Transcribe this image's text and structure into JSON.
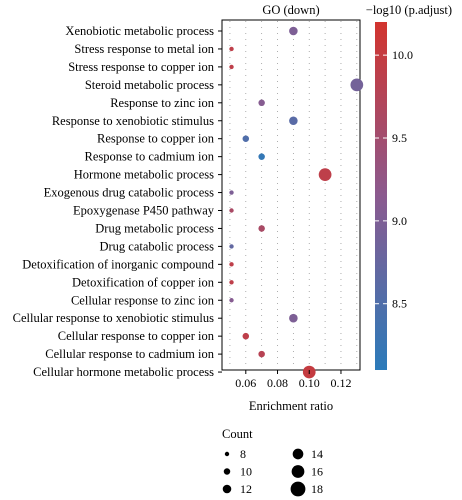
{
  "chart_data": {
    "type": "scatter",
    "title": "GO (down)",
    "xlabel": "Enrichment ratio",
    "xlim": [
      0.045,
      0.132
    ],
    "xticks": [
      0.06,
      0.08,
      0.1,
      0.12
    ],
    "xtick_labels": [
      "0.06",
      "0.08",
      "0.10",
      "0.12"
    ],
    "categories": [
      "Xenobiotic metabolic process",
      "Stress response to metal ion",
      "Stress response to copper ion",
      "Steroid metabolic process",
      "Response to zinc ion",
      "Response to xenobiotic stimulus",
      "Response to copper ion",
      "Response to cadmium ion",
      "Hormone metabolic process",
      "Exogenous drug catabolic process",
      "Epoxygenase P450 pathway",
      "Drug metabolic process",
      "Drug catabolic process",
      "Detoxification of inorganic compound",
      "Detoxification of copper ion",
      "Cellular response to zinc ion",
      "Cellular response to xenobiotic stimulus",
      "Cellular response to copper ion",
      "Cellular response to cadmium ion",
      "Cellular hormone metabolic process"
    ],
    "points": [
      {
        "term": "Xenobiotic metabolic process",
        "x": 0.09,
        "count": 12,
        "p_adjust_neglog10": 9.0
      },
      {
        "term": "Stress response to metal ion",
        "x": 0.051,
        "count": 8,
        "p_adjust_neglog10": 9.9
      },
      {
        "term": "Stress response to copper ion",
        "x": 0.051,
        "count": 8,
        "p_adjust_neglog10": 9.9
      },
      {
        "term": "Steroid metabolic process",
        "x": 0.13,
        "count": 16,
        "p_adjust_neglog10": 8.9
      },
      {
        "term": "Response to zinc ion",
        "x": 0.07,
        "count": 10,
        "p_adjust_neglog10": 9.1
      },
      {
        "term": "Response to xenobiotic stimulus",
        "x": 0.09,
        "count": 12,
        "p_adjust_neglog10": 8.6
      },
      {
        "term": "Response to copper ion",
        "x": 0.06,
        "count": 10,
        "p_adjust_neglog10": 8.5
      },
      {
        "term": "Response to cadmium ion",
        "x": 0.07,
        "count": 10,
        "p_adjust_neglog10": 8.2
      },
      {
        "term": "Hormone metabolic process",
        "x": 0.11,
        "count": 16,
        "p_adjust_neglog10": 9.9
      },
      {
        "term": "Exogenous drug catabolic process",
        "x": 0.051,
        "count": 8,
        "p_adjust_neglog10": 9.0
      },
      {
        "term": "Epoxygenase P450 pathway",
        "x": 0.051,
        "count": 8,
        "p_adjust_neglog10": 9.6
      },
      {
        "term": "Drug metabolic process",
        "x": 0.07,
        "count": 10,
        "p_adjust_neglog10": 9.6
      },
      {
        "term": "Drug catabolic process",
        "x": 0.051,
        "count": 8,
        "p_adjust_neglog10": 8.7
      },
      {
        "term": "Detoxification of inorganic compound",
        "x": 0.051,
        "count": 8,
        "p_adjust_neglog10": 9.9
      },
      {
        "term": "Detoxification of copper ion",
        "x": 0.051,
        "count": 8,
        "p_adjust_neglog10": 9.9
      },
      {
        "term": "Cellular response to zinc ion",
        "x": 0.051,
        "count": 8,
        "p_adjust_neglog10": 9.1
      },
      {
        "term": "Cellular response to xenobiotic stimulus",
        "x": 0.09,
        "count": 12,
        "p_adjust_neglog10": 9.0
      },
      {
        "term": "Cellular response to copper ion",
        "x": 0.06,
        "count": 10,
        "p_adjust_neglog10": 9.9
      },
      {
        "term": "Cellular response to cadmium ion",
        "x": 0.07,
        "count": 10,
        "p_adjust_neglog10": 9.8
      },
      {
        "term": "Cellular hormone metabolic process",
        "x": 0.1,
        "count": 16,
        "p_adjust_neglog10": 10.0
      }
    ],
    "color_scale": {
      "title": "−log10 (p.adjust)",
      "min": 8.1,
      "max": 10.2,
      "ticks": [
        8.5,
        9.0,
        9.5,
        10.0
      ],
      "tick_labels": [
        "8.5",
        "9.0",
        "9.5",
        "10.0"
      ],
      "low_color": "#2b7bba",
      "mid_color": "#8b5a8f",
      "high_color": "#d2342e"
    },
    "size_legend": {
      "title": "Count",
      "values": [
        8,
        10,
        12,
        14,
        16,
        18
      ],
      "labels": [
        "8",
        "10",
        "12",
        "14",
        "16",
        "18"
      ]
    },
    "grid": true,
    "grid_style": "dotted",
    "legend_placement": "right (color bar), bottom (size)"
  }
}
